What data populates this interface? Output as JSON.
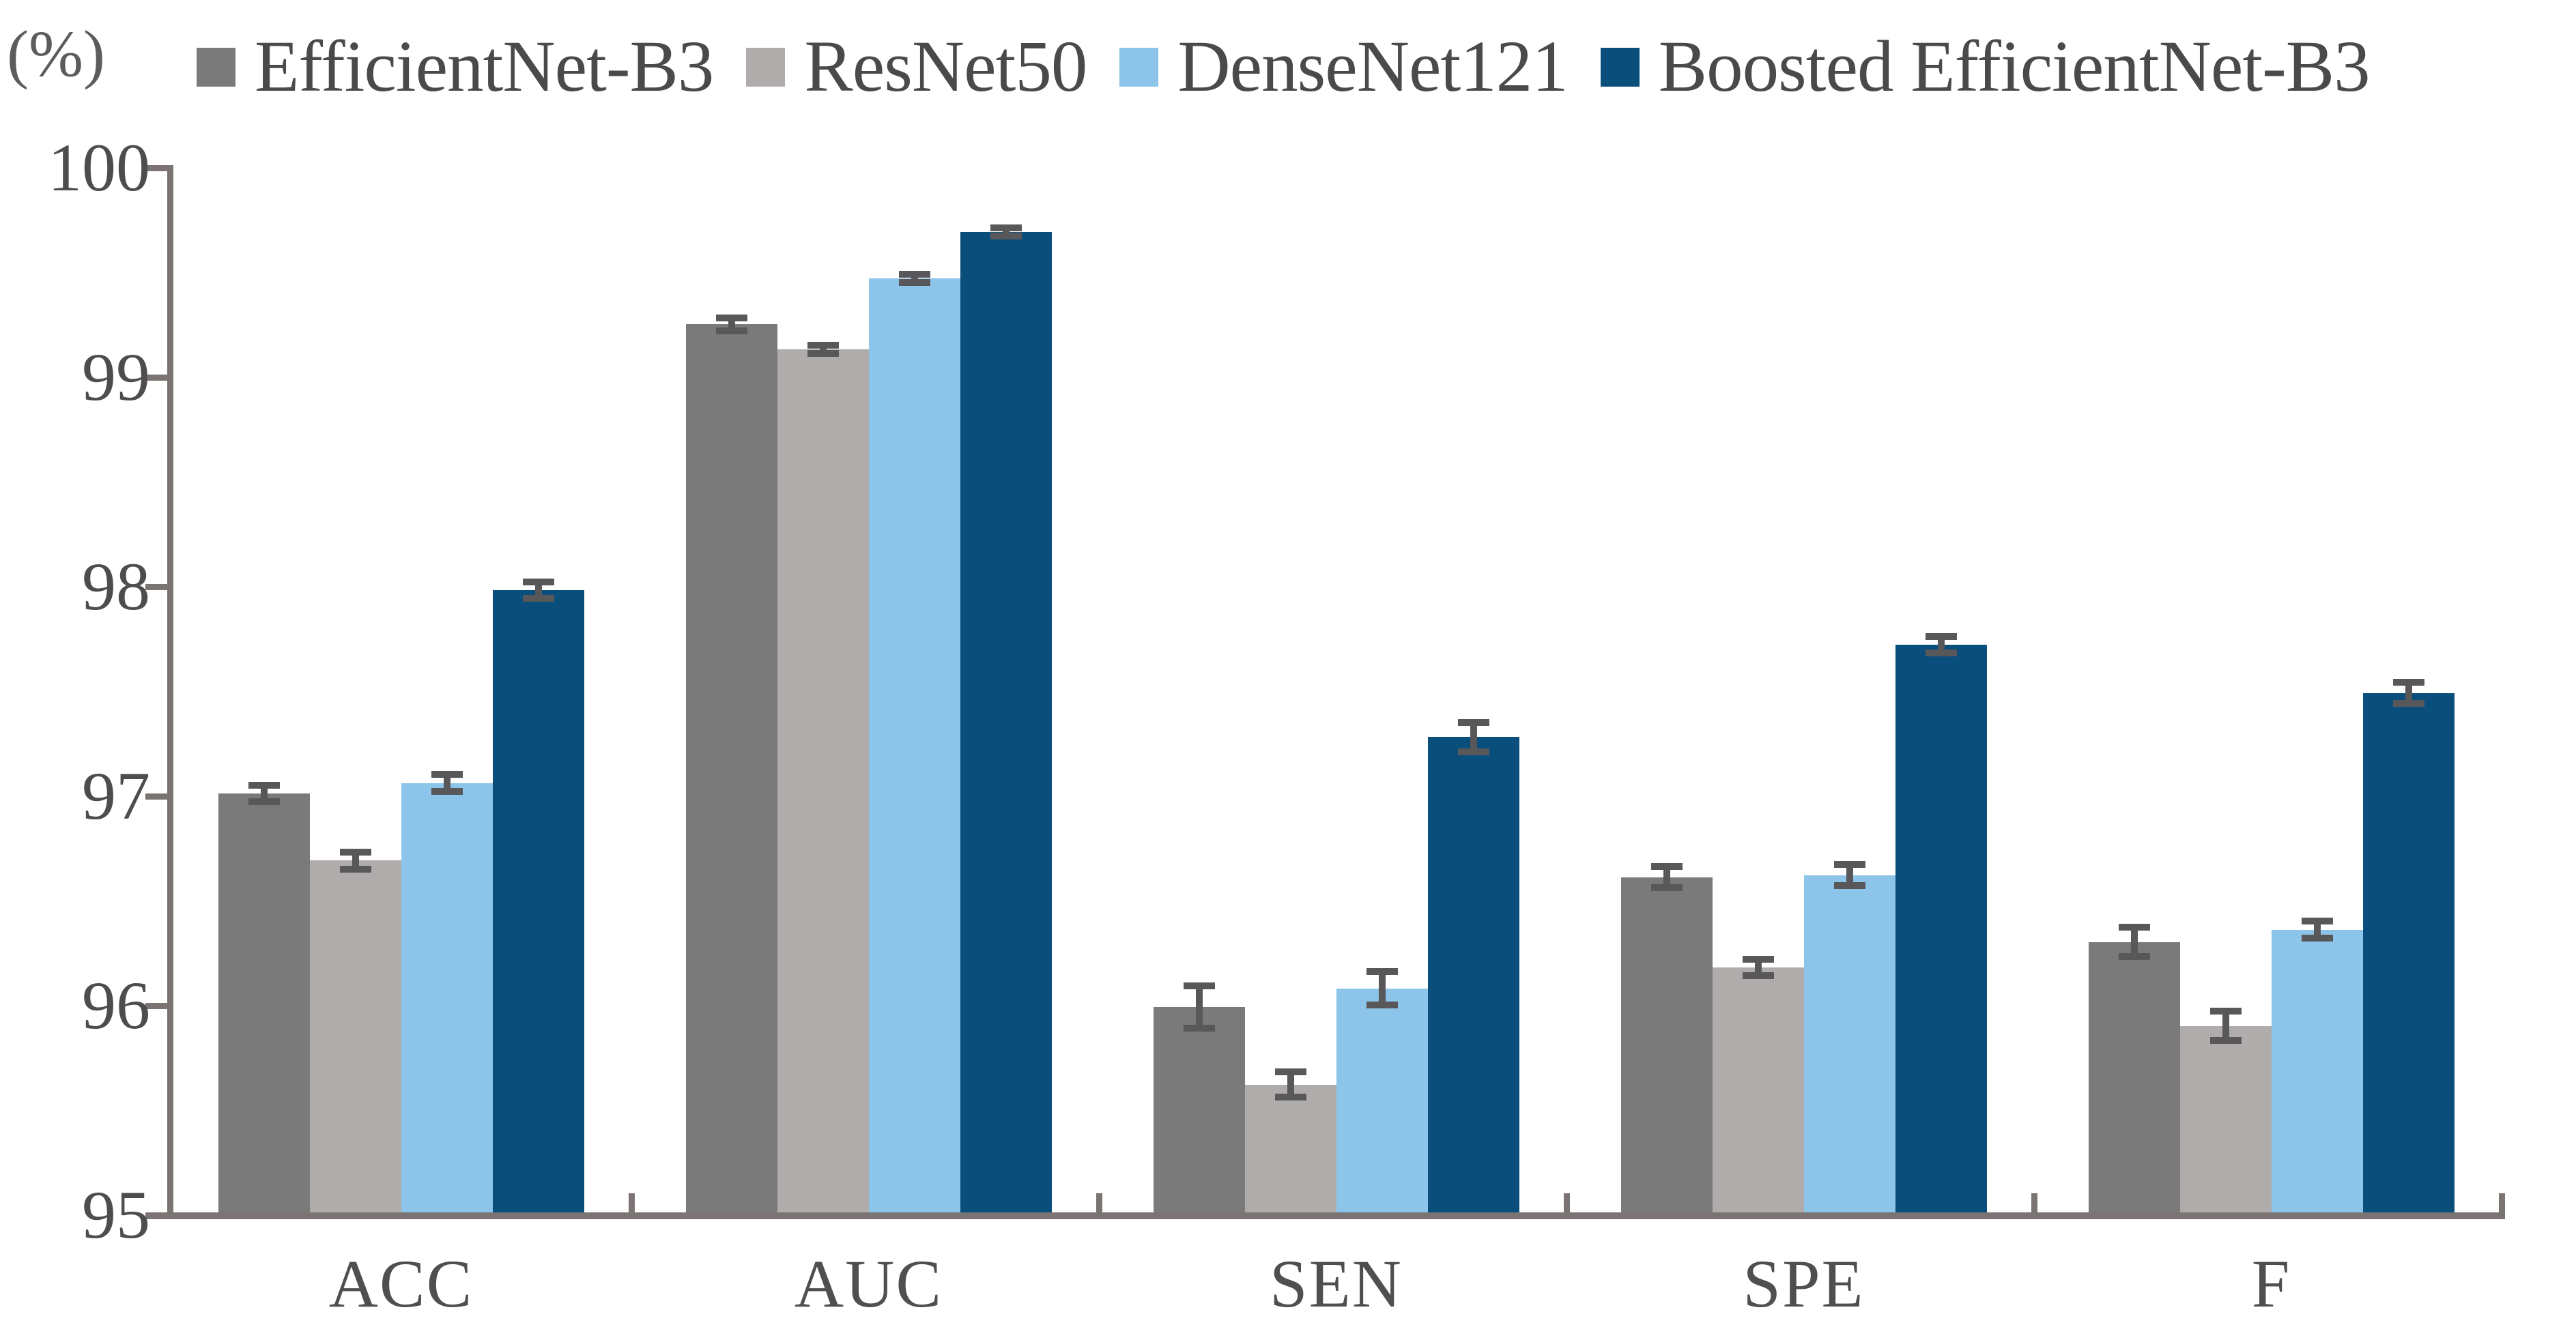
{
  "chart_data": {
    "type": "bar",
    "title": "",
    "unit_label": "(%)",
    "categories": [
      "ACC",
      "AUC",
      "SEN",
      "SPE",
      "F"
    ],
    "series": [
      {
        "name": "EfficientNet-B3",
        "color": "#7a7a7a",
        "values": [
          97.0,
          99.24,
          95.98,
          96.6,
          96.29
        ],
        "errors": [
          0.04,
          0.03,
          0.1,
          0.05,
          0.07
        ]
      },
      {
        "name": "ResNet50",
        "color": "#b1acac",
        "values": [
          96.68,
          99.12,
          95.61,
          96.17,
          95.89
        ],
        "errors": [
          0.04,
          0.02,
          0.06,
          0.04,
          0.07
        ]
      },
      {
        "name": "DenseNet121",
        "color": "#8dc4e9",
        "values": [
          97.05,
          99.46,
          96.07,
          96.61,
          96.35
        ],
        "errors": [
          0.04,
          0.02,
          0.08,
          0.05,
          0.04
        ]
      },
      {
        "name": "Boosted EfficientNet-B3",
        "color": "#0a4e7c",
        "values": [
          97.97,
          99.68,
          97.27,
          97.71,
          97.48
        ],
        "errors": [
          0.04,
          0.02,
          0.07,
          0.04,
          0.05
        ]
      }
    ],
    "y_axis": {
      "min": 95,
      "max": 100,
      "step": 1,
      "tick_labels": [
        "95",
        "96",
        "97",
        "98",
        "99",
        "100"
      ]
    },
    "legend_position": "top",
    "grid": false,
    "error_bars": true,
    "axis_color": "#7a7473",
    "error_bar_color": "#58585a",
    "text_color": "#4d4d4d"
  }
}
